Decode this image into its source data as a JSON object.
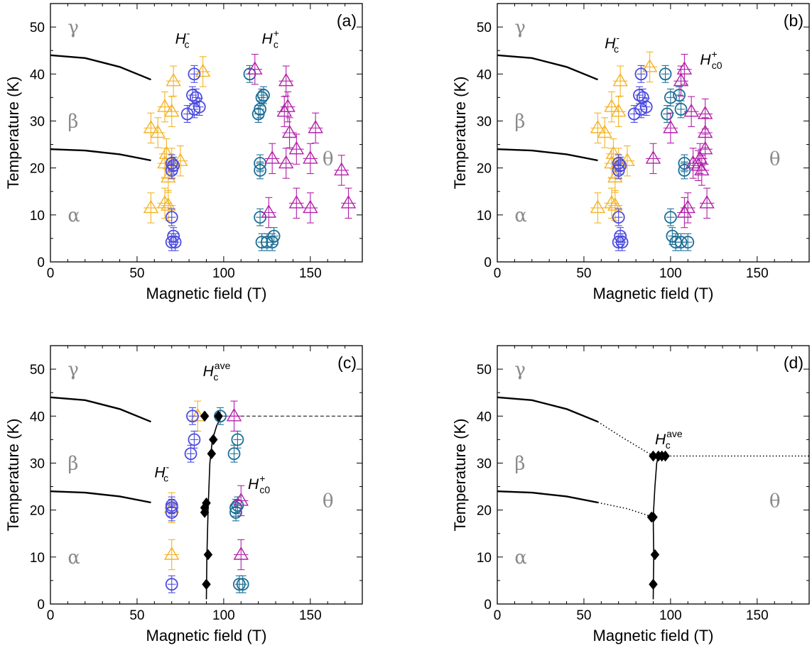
{
  "colors": {
    "hc_minus_left": "#F5B324",
    "hc_minus_right": "#4B4BE0",
    "hc_plus_left": "#1C6E96",
    "hc_plus_right": "#B21FAA",
    "ave": "#000000",
    "phase_text": "#8a8a8a"
  },
  "chart_data": [
    {
      "type": "scatter",
      "panel_label": "(a)",
      "xlabel": "Magnetic field (T)",
      "ylabel": "Temperature (K)",
      "xlim": [
        0,
        180
      ],
      "ylim": [
        0,
        55
      ],
      "xticks": [
        "0",
        "50",
        "100",
        "150"
      ],
      "yticks": [
        "0",
        "10",
        "20",
        "30",
        "40",
        "50"
      ],
      "phases": [
        "γ",
        "β",
        "α",
        "θ"
      ],
      "annotations": [
        {
          "main": "H",
          "sub": "c",
          "sup": "-"
        },
        {
          "main": "H",
          "sub": "c",
          "sup": "+"
        }
      ],
      "boundaries": [
        {
          "style": "solid",
          "x": [
            0,
            20,
            40,
            58
          ],
          "y": [
            44,
            43.4,
            41.5,
            38.8
          ]
        },
        {
          "style": "solid",
          "x": [
            0,
            20,
            40,
            58
          ],
          "y": [
            24,
            23.7,
            22.9,
            21.6
          ]
        }
      ],
      "series": [
        {
          "marker": "triangle",
          "color": "#F5B324",
          "points": [
            [
              58,
              11.5
            ],
            [
              66,
              12.5
            ],
            [
              68,
              12.0
            ],
            [
              68,
              18.0
            ],
            [
              66,
              21.0
            ],
            [
              70,
              21.0
            ],
            [
              67,
              23.0
            ],
            [
              75,
              21.5
            ],
            [
              58,
              28.5
            ],
            [
              62,
              27.5
            ],
            [
              66,
              33.0
            ],
            [
              70,
              32.0
            ],
            [
              71,
              38.5
            ],
            [
              88,
              40.5
            ]
          ]
        },
        {
          "marker": "circle",
          "color": "#4B4BE0",
          "points": [
            [
              70,
              4.2
            ],
            [
              72,
              4.2
            ],
            [
              71,
              5.5
            ],
            [
              70,
              9.5
            ],
            [
              70,
              19.5
            ],
            [
              71,
              20.5
            ],
            [
              70,
              21.0
            ],
            [
              79,
              31.5
            ],
            [
              83,
              32.5
            ],
            [
              86,
              33.0
            ],
            [
              84,
              35.0
            ],
            [
              82,
              35.5
            ],
            [
              83,
              40.0
            ]
          ]
        },
        {
          "marker": "circle",
          "color": "#1C6E96",
          "points": [
            [
              122,
              4.2
            ],
            [
              125,
              4.2
            ],
            [
              128,
              4.2
            ],
            [
              129,
              5.5
            ],
            [
              121,
              9.5
            ],
            [
              121,
              19.5
            ],
            [
              121,
              21.0
            ],
            [
              120,
              31.5
            ],
            [
              121,
              32.5
            ],
            [
              122,
              35.0
            ],
            [
              123,
              35.5
            ],
            [
              115,
              40.0
            ]
          ]
        },
        {
          "marker": "triangle",
          "color": "#B21FAA",
          "points": [
            [
              126,
              10.5
            ],
            [
              128,
              22.0
            ],
            [
              136,
              21.0
            ],
            [
              142,
              12.5
            ],
            [
              142,
              24.0
            ],
            [
              150,
              11.5
            ],
            [
              150,
              22.0
            ],
            [
              153,
              28.5
            ],
            [
              138,
              27.5
            ],
            [
              135,
              32.0
            ],
            [
              137,
              33.0
            ],
            [
              136,
              38.5
            ],
            [
              118,
              41.0
            ],
            [
              168,
              19.5
            ],
            [
              172,
              12.5
            ]
          ]
        }
      ]
    },
    {
      "type": "scatter",
      "panel_label": "(b)",
      "xlabel": "Magnetic field (T)",
      "ylabel": "Temperature (K)",
      "xlim": [
        0,
        180
      ],
      "ylim": [
        0,
        55
      ],
      "xticks": [
        "0",
        "50",
        "100",
        "150"
      ],
      "yticks": [
        "0",
        "10",
        "20",
        "30",
        "40",
        "50"
      ],
      "phases": [
        "γ",
        "β",
        "α",
        "θ"
      ],
      "annotations": [
        {
          "main": "H",
          "sub": "c",
          "sup": "-"
        },
        {
          "main": "H",
          "sub": "c0",
          "sup": "+"
        }
      ],
      "boundaries": [
        {
          "style": "solid",
          "x": [
            0,
            20,
            40,
            58
          ],
          "y": [
            44,
            43.4,
            41.5,
            38.8
          ]
        },
        {
          "style": "solid",
          "x": [
            0,
            20,
            40,
            58
          ],
          "y": [
            24,
            23.7,
            22.9,
            21.6
          ]
        }
      ],
      "series": [
        {
          "marker": "triangle",
          "color": "#F5B324",
          "points": [
            [
              58,
              11.5
            ],
            [
              66,
              12.5
            ],
            [
              68,
              12.0
            ],
            [
              68,
              18.0
            ],
            [
              66,
              21.0
            ],
            [
              70,
              21.0
            ],
            [
              67,
              23.0
            ],
            [
              75,
              21.5
            ],
            [
              58,
              28.5
            ],
            [
              62,
              27.5
            ],
            [
              66,
              33.0
            ],
            [
              70,
              32.0
            ],
            [
              71,
              38.5
            ],
            [
              88,
              41.5
            ]
          ]
        },
        {
          "marker": "circle",
          "color": "#4B4BE0",
          "points": [
            [
              70,
              4.2
            ],
            [
              72,
              4.2
            ],
            [
              71,
              5.5
            ],
            [
              70,
              9.5
            ],
            [
              70,
              19.5
            ],
            [
              71,
              20.5
            ],
            [
              70,
              21.0
            ],
            [
              79,
              31.5
            ],
            [
              83,
              32.5
            ],
            [
              86,
              33.0
            ],
            [
              84,
              35.0
            ],
            [
              82,
              35.5
            ],
            [
              83,
              40.0
            ]
          ]
        },
        {
          "marker": "circle",
          "color": "#1C6E96",
          "points": [
            [
              103,
              4.2
            ],
            [
              106,
              4.2
            ],
            [
              110,
              4.2
            ],
            [
              101,
              5.5
            ],
            [
              100,
              9.5
            ],
            [
              108,
              19.5
            ],
            [
              108,
              21.0
            ],
            [
              98,
              31.5
            ],
            [
              106,
              32.5
            ],
            [
              100,
              35.0
            ],
            [
              105,
              35.5
            ],
            [
              97,
              40.0
            ]
          ]
        },
        {
          "marker": "triangle",
          "color": "#B21FAA",
          "points": [
            [
              108,
              10.5
            ],
            [
              110,
              11.5
            ],
            [
              121,
              12.5
            ],
            [
              90,
              22.0
            ],
            [
              113,
              21.0
            ],
            [
              116,
              20.5
            ],
            [
              117,
              22.0
            ],
            [
              120,
              24.0
            ],
            [
              118,
              19.5
            ],
            [
              100,
              28.5
            ],
            [
              120,
              27.5
            ],
            [
              112,
              32.0
            ],
            [
              120,
              31.5
            ],
            [
              106,
              38.5
            ],
            [
              108,
              41.0
            ]
          ]
        }
      ]
    },
    {
      "type": "scatter",
      "panel_label": "(c)",
      "xlabel": "Magnetic field (T)",
      "ylabel": "Temperature (K)",
      "xlim": [
        0,
        180
      ],
      "ylim": [
        0,
        55
      ],
      "xticks": [
        "0",
        "50",
        "100",
        "150"
      ],
      "yticks": [
        "0",
        "10",
        "20",
        "30",
        "40",
        "50"
      ],
      "phases": [
        "γ",
        "β",
        "α",
        "θ"
      ],
      "annotations": [
        {
          "main": "H",
          "sub": "c",
          "sup": "ave"
        },
        {
          "main": "H",
          "sub": "c",
          "sup": "-"
        },
        {
          "main": "H",
          "sub": "c0",
          "sup": "+"
        }
      ],
      "boundaries": [
        {
          "style": "solid",
          "x": [
            0,
            20,
            40,
            58
          ],
          "y": [
            44,
            43.4,
            41.5,
            38.8
          ]
        },
        {
          "style": "solid",
          "x": [
            0,
            20,
            40,
            58
          ],
          "y": [
            24,
            23.7,
            22.9,
            21.6
          ]
        },
        {
          "style": "dashed",
          "x": [
            100,
            180
          ],
          "y": [
            40,
            40
          ]
        },
        {
          "style": "solid",
          "x": [
            90,
            90.3,
            91,
            92,
            93.5,
            96,
            99
          ],
          "y": [
            1,
            10,
            20,
            30,
            35,
            38,
            40
          ]
        }
      ],
      "series": [
        {
          "marker": "triangle",
          "color": "#F5B324",
          "points": [
            [
              70,
              10.5
            ],
            [
              70,
              20.5
            ],
            [
              85,
              40.0
            ]
          ]
        },
        {
          "marker": "circle",
          "color": "#4B4BE0",
          "points": [
            [
              70,
              4.2
            ],
            [
              70,
              19.5
            ],
            [
              70,
              20.5
            ],
            [
              70,
              21.0
            ],
            [
              81,
              32.0
            ],
            [
              83,
              35.0
            ],
            [
              82,
              40.0
            ]
          ]
        },
        {
          "marker": "circle",
          "color": "#1C6E96",
          "points": [
            [
              109,
              4.2
            ],
            [
              111,
              4.2
            ],
            [
              107,
              19.5
            ],
            [
              107,
              20.5
            ],
            [
              108,
              21.0
            ],
            [
              106,
              32.0
            ],
            [
              108,
              35.0
            ],
            [
              98,
              40.0
            ]
          ]
        },
        {
          "marker": "triangle",
          "color": "#B21FAA",
          "points": [
            [
              110,
              10.5
            ],
            [
              110,
              22.0
            ],
            [
              106,
              40.0
            ]
          ]
        },
        {
          "marker": "diamond",
          "color": "#000000",
          "points": [
            [
              90,
              4.2
            ],
            [
              91,
              10.5
            ],
            [
              89,
              19.5
            ],
            [
              89,
              20.5
            ],
            [
              90,
              21.5
            ],
            [
              93,
              32.0
            ],
            [
              94,
              35.0
            ],
            [
              89,
              40.0
            ],
            [
              97,
              40.0
            ]
          ]
        }
      ]
    },
    {
      "type": "scatter",
      "panel_label": "(d)",
      "xlabel": "Magnetic field (T)",
      "ylabel": "Temperature (K)",
      "xlim": [
        0,
        180
      ],
      "ylim": [
        0,
        55
      ],
      "xticks": [
        "0",
        "50",
        "100",
        "150"
      ],
      "yticks": [
        "0",
        "10",
        "20",
        "30",
        "40",
        "50"
      ],
      "phases": [
        "γ",
        "β",
        "α",
        "θ"
      ],
      "annotations": [
        {
          "main": "H",
          "sub": "c",
          "sup": "ave"
        }
      ],
      "boundaries": [
        {
          "style": "solid",
          "x": [
            0,
            20,
            40,
            58
          ],
          "y": [
            44,
            43.4,
            41.5,
            38.8
          ]
        },
        {
          "style": "dotted",
          "x": [
            58,
            72,
            90
          ],
          "y": [
            38.8,
            35.5,
            31.5
          ]
        },
        {
          "style": "solid",
          "x": [
            0,
            20,
            40,
            58
          ],
          "y": [
            24,
            23.7,
            22.9,
            21.6
          ]
        },
        {
          "style": "dotted",
          "x": [
            58,
            75,
            90
          ],
          "y": [
            21.6,
            20.3,
            18.5
          ]
        },
        {
          "style": "dotted",
          "x": [
            98,
            180
          ],
          "y": [
            31.5,
            31.5
          ]
        },
        {
          "style": "solid",
          "x": [
            90,
            90.3,
            90,
            91,
            92,
            93
          ],
          "y": [
            1,
            10,
            18.5,
            25,
            30,
            31.5
          ]
        }
      ],
      "series": [
        {
          "marker": "diamond",
          "color": "#000000",
          "points": [
            [
              90,
              4.2
            ],
            [
              91,
              10.5
            ],
            [
              89,
              18.5
            ],
            [
              90,
              18.5
            ],
            [
              90,
              31.5
            ],
            [
              93,
              31.5
            ],
            [
              95,
              31.5
            ],
            [
              97,
              31.5
            ]
          ]
        }
      ]
    }
  ]
}
